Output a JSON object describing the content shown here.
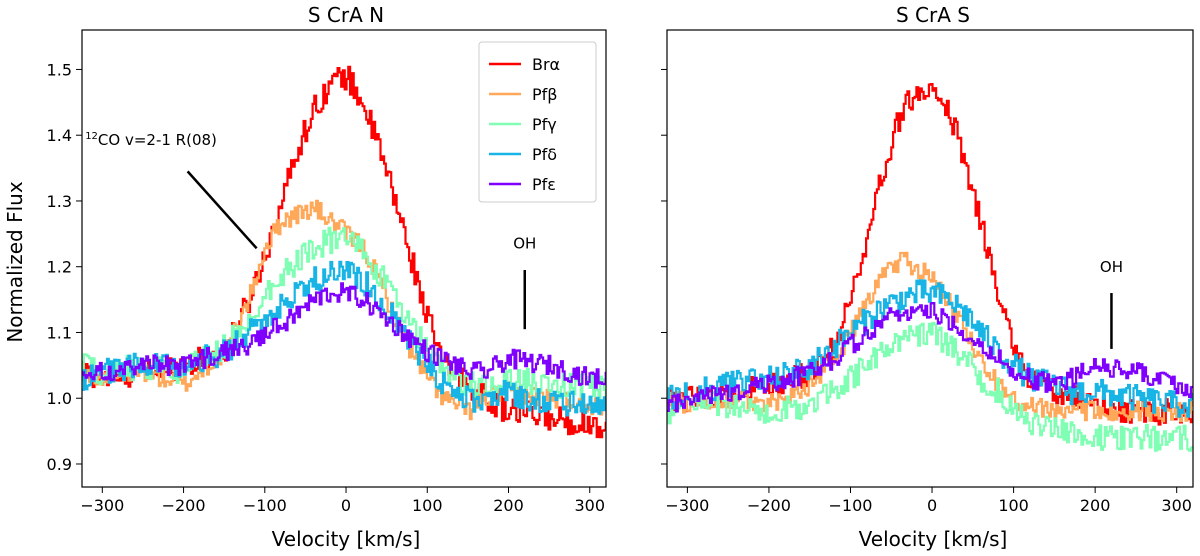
{
  "chart_data": [
    {
      "type": "line",
      "title": "S CrA N",
      "xlabel": "Velocity [km/s]",
      "ylabel": "Normalized Flux",
      "xlim": [
        -325,
        320
      ],
      "ylim": [
        0.865,
        1.56
      ],
      "xticks": [
        -300,
        -200,
        -100,
        0,
        100,
        200,
        300
      ],
      "xtick_labels": [
        "−300",
        "−200",
        "−100",
        "0",
        "100",
        "200",
        "300"
      ],
      "yticks": [
        0.9,
        1.0,
        1.1,
        1.2,
        1.3,
        1.4,
        1.5
      ],
      "ytick_labels": [
        "0.9",
        "1.0",
        "1.1",
        "1.2",
        "1.3",
        "1.4",
        "1.5"
      ],
      "series": [
        {
          "name": "Brα",
          "color": "#ff0000",
          "x": [
            -325,
            -300,
            -250,
            -200,
            -150,
            -120,
            -100,
            -80,
            -60,
            -40,
            -20,
            0,
            20,
            40,
            60,
            80,
            100,
            120,
            150,
            170,
            200,
            250,
            300,
            320
          ],
          "y": [
            1.04,
            1.03,
            1.04,
            1.05,
            1.07,
            1.15,
            1.22,
            1.3,
            1.38,
            1.44,
            1.48,
            1.49,
            1.45,
            1.38,
            1.3,
            1.21,
            1.12,
            1.05,
            1.02,
            1.0,
            0.98,
            0.97,
            0.96,
            0.96
          ],
          "noise": 0.02
        },
        {
          "name": "Pfβ",
          "color": "#ffa85a",
          "x": [
            -325,
            -300,
            -250,
            -200,
            -150,
            -120,
            -100,
            -80,
            -60,
            -40,
            -20,
            0,
            20,
            40,
            60,
            80,
            100,
            120,
            150,
            170,
            200,
            250,
            300,
            320
          ],
          "y": [
            1.04,
            1.03,
            1.04,
            1.02,
            1.07,
            1.15,
            1.23,
            1.27,
            1.28,
            1.29,
            1.27,
            1.25,
            1.23,
            1.18,
            1.12,
            1.07,
            1.03,
            1.0,
            0.98,
            1.0,
            1.01,
            1.0,
            0.99,
            0.99
          ],
          "noise": 0.015
        },
        {
          "name": "Pfγ",
          "color": "#80ffb4",
          "x": [
            -325,
            -300,
            -250,
            -200,
            -150,
            -120,
            -100,
            -80,
            -60,
            -40,
            -20,
            0,
            20,
            40,
            60,
            80,
            100,
            120,
            150,
            170,
            200,
            250,
            300,
            320
          ],
          "y": [
            1.05,
            1.04,
            1.05,
            1.04,
            1.08,
            1.12,
            1.16,
            1.19,
            1.21,
            1.23,
            1.24,
            1.24,
            1.22,
            1.19,
            1.15,
            1.11,
            1.07,
            1.04,
            1.02,
            1.02,
            1.03,
            1.02,
            1.02,
            1.01
          ],
          "noise": 0.02
        },
        {
          "name": "Pfδ",
          "color": "#19b4e6",
          "x": [
            -325,
            -300,
            -250,
            -200,
            -150,
            -120,
            -100,
            -80,
            -60,
            -40,
            -20,
            0,
            20,
            40,
            60,
            80,
            100,
            120,
            150,
            170,
            200,
            250,
            300,
            320
          ],
          "y": [
            1.03,
            1.04,
            1.05,
            1.05,
            1.07,
            1.1,
            1.12,
            1.14,
            1.16,
            1.18,
            1.19,
            1.19,
            1.18,
            1.15,
            1.12,
            1.08,
            1.05,
            1.02,
            1.0,
            0.99,
            1.01,
            0.99,
            0.99,
            0.99
          ],
          "noise": 0.02
        },
        {
          "name": "Pfε",
          "color": "#8000ff",
          "x": [
            -325,
            -300,
            -250,
            -200,
            -150,
            -120,
            -100,
            -80,
            -60,
            -40,
            -20,
            0,
            20,
            40,
            60,
            80,
            100,
            120,
            150,
            170,
            200,
            250,
            300,
            320
          ],
          "y": [
            1.03,
            1.04,
            1.05,
            1.05,
            1.07,
            1.08,
            1.1,
            1.11,
            1.13,
            1.15,
            1.16,
            1.16,
            1.15,
            1.13,
            1.11,
            1.09,
            1.07,
            1.06,
            1.04,
            1.04,
            1.06,
            1.05,
            1.03,
            1.03
          ],
          "noise": 0.015
        }
      ],
      "annotations": [
        {
          "text": "OH",
          "x": 220,
          "y": 1.228,
          "line_from": [
            220,
            1.195
          ],
          "line_to": [
            220,
            1.105
          ]
        },
        {
          "text_sup": "12",
          "text": "CO v=2-1 R(08)",
          "x": -240,
          "y": 1.385,
          "line_from": [
            -195,
            1.345
          ],
          "line_to": [
            -110,
            1.228
          ]
        }
      ],
      "legend": "top-right"
    },
    {
      "type": "line",
      "title": "S CrA S",
      "xlabel": "Velocity [km/s]",
      "ylabel": "",
      "xlim": [
        -325,
        320
      ],
      "ylim": [
        0.865,
        1.56
      ],
      "xticks": [
        -300,
        -200,
        -100,
        0,
        100,
        200,
        300
      ],
      "xtick_labels": [
        "−300",
        "−200",
        "−100",
        "0",
        "100",
        "200",
        "300"
      ],
      "yticks": [
        0.9,
        1.0,
        1.1,
        1.2,
        1.3,
        1.4,
        1.5
      ],
      "series": [
        {
          "name": "Brα",
          "color": "#ff0000",
          "x": [
            -325,
            -300,
            -250,
            -200,
            -150,
            -120,
            -100,
            -80,
            -60,
            -40,
            -20,
            0,
            20,
            40,
            60,
            80,
            100,
            120,
            150,
            170,
            200,
            250,
            300,
            320
          ],
          "y": [
            1.0,
            1.0,
            1.01,
            1.02,
            1.04,
            1.08,
            1.15,
            1.25,
            1.35,
            1.43,
            1.47,
            1.48,
            1.44,
            1.36,
            1.26,
            1.16,
            1.08,
            1.03,
            1.01,
            1.0,
            0.99,
            0.98,
            0.98,
            0.98
          ],
          "noise": 0.02
        },
        {
          "name": "Pfβ",
          "color": "#ffa85a",
          "x": [
            -325,
            -300,
            -250,
            -200,
            -150,
            -120,
            -100,
            -80,
            -60,
            -40,
            -20,
            0,
            20,
            40,
            60,
            80,
            100,
            120,
            150,
            170,
            200,
            250,
            300,
            320
          ],
          "y": [
            1.0,
            0.99,
            1.0,
            0.99,
            1.02,
            1.06,
            1.1,
            1.15,
            1.19,
            1.21,
            1.2,
            1.18,
            1.15,
            1.1,
            1.06,
            1.02,
            1.0,
            0.99,
            0.98,
            0.98,
            0.98,
            0.98,
            0.98,
            0.98
          ],
          "noise": 0.015
        },
        {
          "name": "Pfγ",
          "color": "#80ffb4",
          "x": [
            -325,
            -300,
            -250,
            -200,
            -150,
            -120,
            -100,
            -80,
            -60,
            -40,
            -20,
            0,
            20,
            40,
            60,
            80,
            100,
            120,
            150,
            170,
            200,
            250,
            300,
            320
          ],
          "y": [
            0.98,
            1.0,
            0.99,
            0.98,
            0.99,
            1.01,
            1.03,
            1.05,
            1.07,
            1.09,
            1.1,
            1.1,
            1.08,
            1.06,
            1.03,
            1.01,
            0.98,
            0.96,
            0.95,
            0.95,
            0.94,
            0.94,
            0.94,
            0.94
          ],
          "noise": 0.02
        },
        {
          "name": "Pfδ",
          "color": "#19b4e6",
          "x": [
            -325,
            -300,
            -250,
            -200,
            -150,
            -120,
            -100,
            -80,
            -60,
            -40,
            -20,
            0,
            20,
            40,
            60,
            80,
            100,
            120,
            150,
            170,
            200,
            250,
            300,
            320
          ],
          "y": [
            1.0,
            1.01,
            1.02,
            1.03,
            1.05,
            1.08,
            1.1,
            1.12,
            1.14,
            1.15,
            1.16,
            1.16,
            1.15,
            1.13,
            1.1,
            1.07,
            1.05,
            1.03,
            1.02,
            1.01,
            1.01,
            1.0,
            0.99,
            0.99
          ],
          "noise": 0.02
        },
        {
          "name": "Pfε",
          "color": "#8000ff",
          "x": [
            -325,
            -300,
            -250,
            -200,
            -150,
            -120,
            -100,
            -80,
            -60,
            -40,
            -20,
            0,
            20,
            40,
            60,
            80,
            100,
            120,
            150,
            170,
            200,
            250,
            300,
            320
          ],
          "y": [
            0.99,
            1.0,
            1.01,
            1.02,
            1.04,
            1.06,
            1.08,
            1.1,
            1.12,
            1.13,
            1.13,
            1.13,
            1.12,
            1.1,
            1.08,
            1.06,
            1.04,
            1.03,
            1.02,
            1.03,
            1.05,
            1.04,
            1.02,
            1.01
          ],
          "noise": 0.015
        }
      ],
      "annotations": [
        {
          "text": "OH",
          "x": 220,
          "y": 1.192,
          "line_from": [
            220,
            1.16
          ],
          "line_to": [
            220,
            1.075
          ]
        }
      ]
    }
  ]
}
